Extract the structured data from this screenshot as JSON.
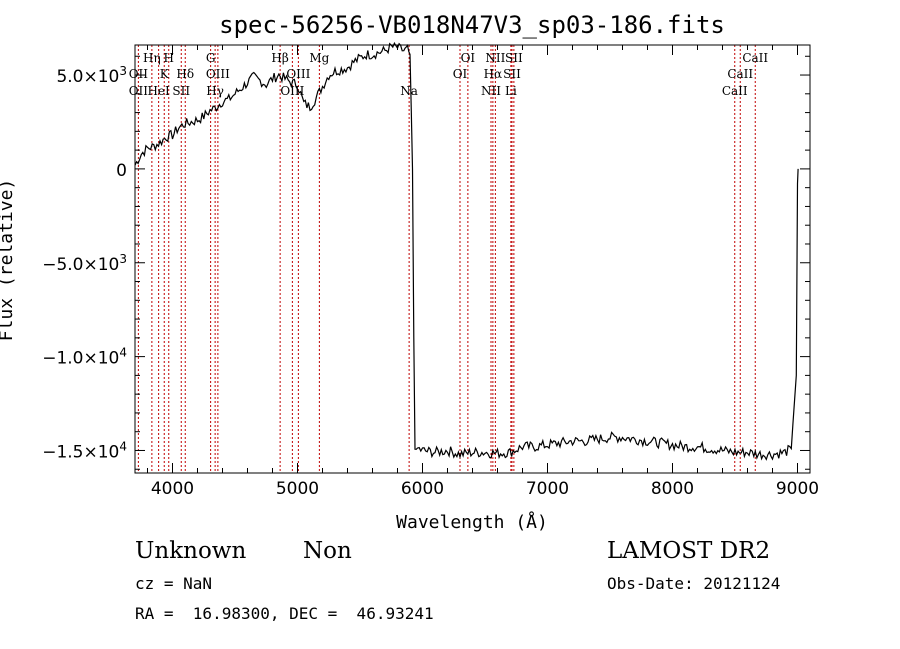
{
  "chart_data": {
    "type": "line",
    "title": "spec-56256-VB018N47V3_sp03-186.fits",
    "xlabel": "Wavelength (Å)",
    "ylabel": "Flux (relative)",
    "xlim": [
      3700,
      9100
    ],
    "ylim": [
      -16200,
      6600
    ],
    "x_ticks": [
      {
        "value": 4000,
        "label": "4000"
      },
      {
        "value": 5000,
        "label": "5000"
      },
      {
        "value": 6000,
        "label": "6000"
      },
      {
        "value": 7000,
        "label": "7000"
      },
      {
        "value": 8000,
        "label": "8000"
      },
      {
        "value": 9000,
        "label": "9000"
      }
    ],
    "y_ticks": [
      {
        "value": 5000,
        "mantissa": "5.0×10",
        "exp": "3"
      },
      {
        "value": 0,
        "mantissa": "0",
        "exp": ""
      },
      {
        "value": -5000,
        "mantissa": "−5.0×10",
        "exp": "3"
      },
      {
        "value": -10000,
        "mantissa": "−1.0×10",
        "exp": "4"
      },
      {
        "value": -15000,
        "mantissa": "−1.5×10",
        "exp": "4"
      }
    ],
    "series": [
      {
        "x": [
          3700,
          3750,
          3800,
          3850,
          3900,
          3950,
          4000,
          4050,
          4100,
          4150,
          4200,
          4250,
          4300,
          4350,
          4400,
          4450,
          4500,
          4550,
          4600,
          4650,
          4700,
          4750,
          4800,
          4850,
          4900,
          4950,
          5000,
          5050,
          5100,
          5150,
          5200,
          5250,
          5300,
          5350,
          5400,
          5450,
          5500,
          5550,
          5600,
          5650,
          5700,
          5750,
          5800,
          5850,
          5880,
          5900,
          5910,
          5920,
          5930,
          5940,
          5950,
          5960,
          6000,
          6100,
          6200,
          6300,
          6400,
          6500,
          6600,
          6700,
          6800,
          6900,
          7000,
          7100,
          7200,
          7300,
          7400,
          7500,
          7600,
          7700,
          7800,
          7900,
          8000,
          8100,
          8200,
          8300,
          8400,
          8500,
          8600,
          8700,
          8800,
          8900,
          8950,
          8990,
          9000,
          9005
        ],
        "y": [
          200,
          800,
          1100,
          1200,
          1400,
          1700,
          1800,
          2200,
          2400,
          2500,
          2600,
          2800,
          3100,
          3300,
          3600,
          3700,
          4000,
          4300,
          4600,
          4900,
          4700,
          4500,
          4800,
          5000,
          4800,
          4600,
          4500,
          3500,
          3300,
          3800,
          4400,
          5000,
          5200,
          5300,
          5400,
          5700,
          5900,
          6100,
          6100,
          6200,
          6300,
          6500,
          6450,
          6300,
          6350,
          6100,
          3000,
          0,
          -9000,
          -14700,
          -15200,
          -14900,
          -15000,
          -15100,
          -15000,
          -15200,
          -15100,
          -15100,
          -15150,
          -15100,
          -14800,
          -14800,
          -14700,
          -14600,
          -14500,
          -14500,
          -14400,
          -14300,
          -14300,
          -14400,
          -14500,
          -14600,
          -14700,
          -14800,
          -14800,
          -14900,
          -15000,
          -15100,
          -15100,
          -15200,
          -15200,
          -15100,
          -14900,
          -11000,
          -1000,
          0
        ]
      }
    ],
    "annotations": {
      "lines": [
        {
          "wavelength": 3727,
          "label": "OII",
          "row": 2
        },
        {
          "wavelength": 3727,
          "label": "OII",
          "row": 3
        },
        {
          "wavelength": 3835,
          "label": "Hη",
          "row": 1
        },
        {
          "wavelength": 3889,
          "label": "HeI",
          "row": 3
        },
        {
          "wavelength": 3934,
          "label": "K",
          "row": 2
        },
        {
          "wavelength": 3970,
          "label": "H",
          "row": 1
        },
        {
          "wavelength": 4070,
          "label": "SII",
          "row": 3
        },
        {
          "wavelength": 4102,
          "label": "Hδ",
          "row": 2
        },
        {
          "wavelength": 4305,
          "label": "G",
          "row": 1
        },
        {
          "wavelength": 4341,
          "label": "Hγ",
          "row": 3
        },
        {
          "wavelength": 4363,
          "label": "OIII",
          "row": 2
        },
        {
          "wavelength": 4861,
          "label": "Hβ",
          "row": 1
        },
        {
          "wavelength": 4959,
          "label": "OIII",
          "row": 3
        },
        {
          "wavelength": 5007,
          "label": "OIII",
          "row": 2
        },
        {
          "wavelength": 5175,
          "label": "Mg",
          "row": 1
        },
        {
          "wavelength": 5893,
          "label": "Na",
          "row": 3
        },
        {
          "wavelength": 6300,
          "label": "OI",
          "row": 2
        },
        {
          "wavelength": 6363,
          "label": "OI",
          "row": 1
        },
        {
          "wavelength": 6548,
          "label": "NII",
          "row": 3
        },
        {
          "wavelength": 6563,
          "label": "Hα",
          "row": 2
        },
        {
          "wavelength": 6583,
          "label": "NII",
          "row": 1
        },
        {
          "wavelength": 6707,
          "label": "Li",
          "row": 3
        },
        {
          "wavelength": 6716,
          "label": "SII",
          "row": 2
        },
        {
          "wavelength": 6731,
          "label": "SII",
          "row": 1
        },
        {
          "wavelength": 8498,
          "label": "CaII",
          "row": 3
        },
        {
          "wavelength": 8542,
          "label": "CaII",
          "row": 2
        },
        {
          "wavelength": 8662,
          "label": "CaII",
          "row": 1
        }
      ],
      "line_color": "#c00000"
    },
    "grid": false,
    "legend": "none"
  },
  "footer": {
    "class_label": "Unknown",
    "subclass_label": "Non",
    "cz_line": "cz = NaN",
    "coord_line": "RA =  16.98300, DEC =  46.93241",
    "survey_label": "LAMOST DR2",
    "obs_date_line": "Obs-Date: 20121124"
  },
  "colors": {
    "spectrum": "#000000",
    "axes": "#000000",
    "marker_line": "#c00000"
  }
}
